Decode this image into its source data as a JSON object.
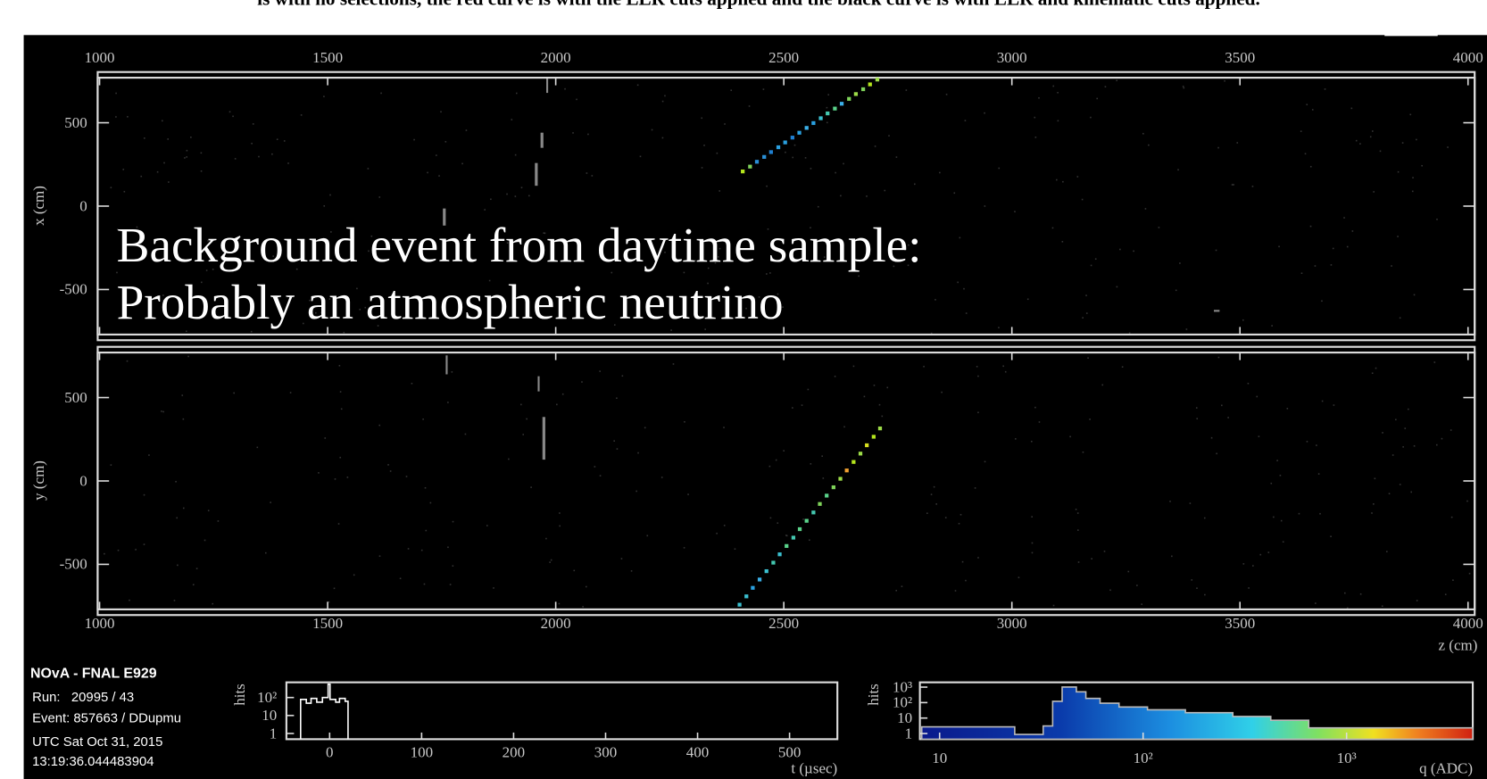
{
  "caption": "is with no selections, the red curve is with the LLR cuts applied and the black curve is with LLR and kinematic cuts applied.",
  "top_view": {
    "axis_label": "x (cm)",
    "zlim": [
      1000,
      4000
    ],
    "z_ticks": [
      1000,
      1500,
      2000,
      2500,
      3000,
      3500,
      4000
    ],
    "xlim": [
      -770,
      770
    ],
    "x_ticks": [
      500,
      0,
      -500
    ],
    "track": {
      "z": [
        2410,
        2426,
        2441,
        2457,
        2472,
        2488,
        2503,
        2519,
        2534,
        2550,
        2565,
        2581,
        2596,
        2612,
        2627,
        2643,
        2658,
        2674,
        2689,
        2705
      ],
      "x": [
        208,
        237,
        266,
        295,
        324,
        353,
        382,
        411,
        440,
        469,
        498,
        527,
        556,
        585,
        614,
        643,
        672,
        701,
        730,
        759
      ],
      "colors": [
        "#b5e61d",
        "#7fd35a",
        "#2a8fd6",
        "#2a8fd6",
        "#1f7fd0",
        "#2aa0e0",
        "#2aa0e0",
        "#1f7fd0",
        "#2aa0e0",
        "#3bb0e8",
        "#2aa0e0",
        "#3bc0d0",
        "#44c8b0",
        "#5ad28a",
        "#3bb0e8",
        "#7fd35a",
        "#9ddc48",
        "#7fd35a",
        "#b5e61d",
        "#9ddc48"
      ]
    },
    "annotation": [
      "Background event from daytime sample:",
      "Probably an atmospheric neutrino"
    ]
  },
  "bottom_view": {
    "axis_label": "y (cm)",
    "z_axis_label": "z (cm)",
    "zlim": [
      1000,
      4000
    ],
    "z_ticks": [
      1000,
      1500,
      2000,
      2500,
      3000,
      3500,
      4000
    ],
    "ylim": [
      -770,
      770
    ],
    "y_ticks": [
      500,
      0,
      -500
    ],
    "track": {
      "z": [
        2403,
        2418,
        2432,
        2447,
        2462,
        2477,
        2491,
        2506,
        2521,
        2535,
        2550,
        2565,
        2579,
        2594,
        2609,
        2624,
        2638,
        2653,
        2668,
        2682,
        2697,
        2711
      ],
      "y": [
        -742,
        -692,
        -641,
        -591,
        -541,
        -490,
        -440,
        -390,
        -340,
        -289,
        -239,
        -189,
        -138,
        -88,
        -38,
        13,
        63,
        114,
        164,
        214,
        265,
        315
      ],
      "colors": [
        "#3bc0d0",
        "#3bc0d0",
        "#2aa0e0",
        "#3bb0e8",
        "#3bc0d0",
        "#44c8b0",
        "#3bc0d0",
        "#5ad28a",
        "#44c8b0",
        "#5ad28a",
        "#5ad28a",
        "#44c8b0",
        "#7fd35a",
        "#5ad28a",
        "#7fd35a",
        "#9ddc48",
        "#f0a030",
        "#b5e61d",
        "#9ddc48",
        "#d8e020",
        "#b5e61d",
        "#9ddc48"
      ]
    }
  },
  "info": {
    "title": "NOvA - FNAL E929",
    "run": "Run:   20995 / 43",
    "event": "Event: 857663 / DDupmu",
    "date": "UTC Sat Oct 31, 2015",
    "time": "13:19:36.044483904"
  },
  "time_hist": {
    "y_label": "hits",
    "x_label": "t (µsec)",
    "xlim": [
      -47,
      552
    ],
    "x_ticks": [
      0,
      100,
      200,
      300,
      400,
      500
    ],
    "ylim": [
      0.48,
      700
    ],
    "y_ticks": [
      {
        "value": 100,
        "label": "10²"
      },
      10,
      1
    ]
  },
  "charge_hist": {
    "y_label": "hits",
    "x_label": "q (ADC)",
    "xlim": [
      8,
      4170
    ],
    "x_ticks": [
      10,
      {
        "value": 100,
        "label": "10²"
      },
      {
        "value": 1000,
        "label": "10³"
      }
    ],
    "ylim": [
      0.43,
      2040
    ],
    "y_ticks": [
      {
        "value": 1000,
        "label": "10³"
      },
      {
        "value": 100,
        "label": "10²"
      },
      10,
      1
    ]
  }
}
